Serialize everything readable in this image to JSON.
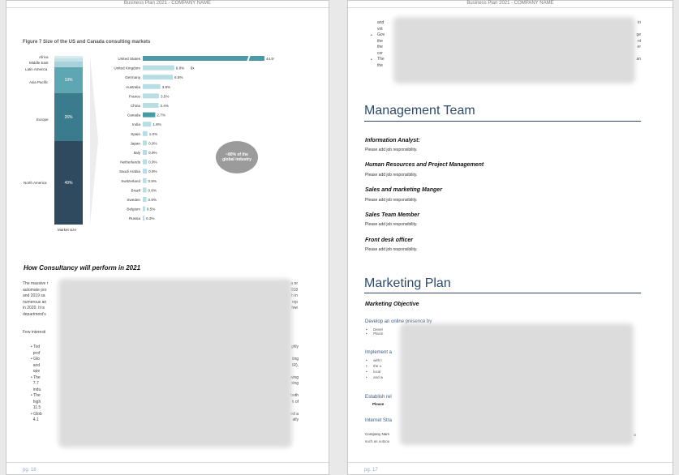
{
  "header_text": "Business Plan 2021 - COMPANY NAME",
  "left_page": {
    "figure_title": "Figure 7 Size of the US and Canada consulting markets",
    "stack_labels": [
      "Africa",
      "Middle East",
      "Latin America",
      "Asia Pacific",
      "Europe",
      "North America"
    ],
    "stack_values": [
      "19%",
      "26%",
      "49%"
    ],
    "stack_xlabel": "Market size",
    "callout": "~80% of the global industry",
    "section_heading": "How Consultancy will perform in 2021",
    "para_fragments": [
      "The massive r",
      "automate pro",
      "and 2019 sa",
      "numerous an",
      "in 2020. It is",
      "department's"
    ],
    "para_right": [
      "a or",
      "018",
      "h in",
      "rop",
      "few"
    ],
    "few_interest": "Few interesti",
    "bullet_fragments": [
      "Tod",
      "prof",
      "Glo",
      "and",
      "ope",
      "The",
      "7.7",
      "indu",
      "The",
      "high",
      "11.5",
      "Glob",
      "4.1"
    ],
    "bullet_right": [
      "ghly",
      "ting",
      "IR),",
      "wing",
      "sing",
      "both",
      "h of",
      "ed a",
      "ally"
    ],
    "page_number": "pg. 16"
  },
  "right_page": {
    "top_fragments": [
      "and",
      "virt",
      "Gov",
      "the",
      "the",
      "cor",
      "The",
      "the"
    ],
    "top_right": [
      "in",
      "ge",
      "nt",
      "er",
      "an"
    ],
    "management_title": "Management Team",
    "roles": [
      {
        "title": "Information Analyst:",
        "resp": "Please add job responsibility."
      },
      {
        "title": "Human Resources and Project Management",
        "resp": "Please add job responsibility."
      },
      {
        "title": "Sales and marketing Manger",
        "resp": "Please add job responsibility."
      },
      {
        "title": "Sales Team Member",
        "resp": "Please add job responsibility."
      },
      {
        "title": "Front desk officer",
        "resp": "Please add job responsibility."
      }
    ],
    "marketing_title": "Marketing Plan",
    "marketing_objective": "Marketing Objective",
    "develop": "Develop an online presence by",
    "develop_items": [
      "Devel",
      "Placin"
    ],
    "implement": "Implement a",
    "implement_items": [
      "with t",
      "the u",
      "local",
      "and w"
    ],
    "establish": "Establish rel",
    "please": "Please",
    "internet": "Internet Stra",
    "company_line": "Company Nam",
    "company_tail": "is",
    "outsourcing": "such as outsou",
    "page_number": "pg. 17"
  },
  "chart_data": {
    "type": "bar",
    "categories": [
      "United States",
      "United Kingdom",
      "Germany",
      "Australia",
      "France",
      "China",
      "Canada",
      "India",
      "Spain",
      "Japan",
      "Italy",
      "Netherlands",
      "Saudi Arabia",
      "Switzerland",
      "Brazil",
      "Sweden",
      "Belgium",
      "Russia"
    ],
    "values": [
      44.5,
      6.8,
      6.5,
      3.8,
      3.5,
      3.4,
      2.7,
      1.8,
      1.0,
      0.9,
      0.9,
      0.9,
      0.9,
      0.8,
      0.8,
      0.8,
      0.5,
      0.3
    ],
    "labels": [
      "44.5%",
      "6.8%",
      "6.5%",
      "3.8%",
      "3.5%",
      "3.4%",
      "2.7%",
      "1.8%",
      "1.0%",
      "0.9%",
      "0.9%",
      "0.9%",
      "0.9%",
      "0.8%",
      "0.8%",
      "0.8%",
      "0.5%",
      "0.3%"
    ],
    "extra_annotation": "6x",
    "highlight": [
      "United States",
      "Canada"
    ],
    "colors": {
      "highlight": "#4a9aa6",
      "normal": "#b8dde2",
      "stack_dark": "#2f4a5f",
      "stack_mid": "#3a7c8e",
      "stack_light": "#5ea6b2"
    }
  }
}
